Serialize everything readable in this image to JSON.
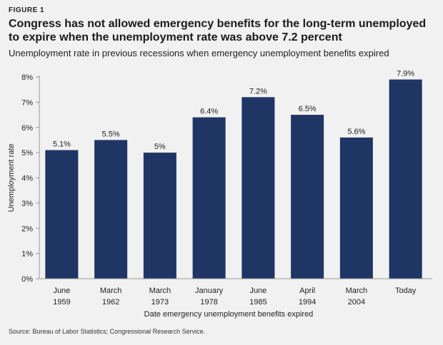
{
  "figure_label": "FIGURE 1",
  "title_line1": "Congress has not allowed emergency benefits for the long-term unemployed",
  "title_line2": "to expire when the unemployment rate was above 7.2 percent",
  "source": "Source: Bureau of Labor Statistics; Congressional Research Service.",
  "colors": {
    "bar": "#1f3564",
    "background": "#f1f1f2",
    "axis": "#999999"
  },
  "chart_data": {
    "type": "bar",
    "title": "Unemployment rate in previous recessions when emergency unemployment benefits expired",
    "xlabel": "Date emergency unemployment benefits expired",
    "ylabel": "Unemployment rate",
    "ylim": [
      0,
      8
    ],
    "yticks": [
      0,
      1,
      2,
      3,
      4,
      5,
      6,
      7,
      8
    ],
    "ytick_labels": [
      "0%",
      "1%",
      "2%",
      "3%",
      "4%",
      "5%",
      "6%",
      "7%",
      "8%"
    ],
    "categories": [
      [
        "June",
        "1959"
      ],
      [
        "March",
        "1962"
      ],
      [
        "March",
        "1973"
      ],
      [
        "January",
        "1978"
      ],
      [
        "June",
        "1985"
      ],
      [
        "April",
        "1994"
      ],
      [
        "March",
        "2004"
      ],
      [
        "Today"
      ]
    ],
    "values": [
      5.1,
      5.5,
      5.0,
      6.4,
      7.2,
      6.5,
      5.6,
      7.9
    ],
    "data_labels": [
      "5.1%",
      "5.5%",
      "5%",
      "6.4%",
      "7.2%",
      "6.5%",
      "5.6%",
      "7.9%"
    ],
    "grid": false,
    "legend": "none"
  }
}
